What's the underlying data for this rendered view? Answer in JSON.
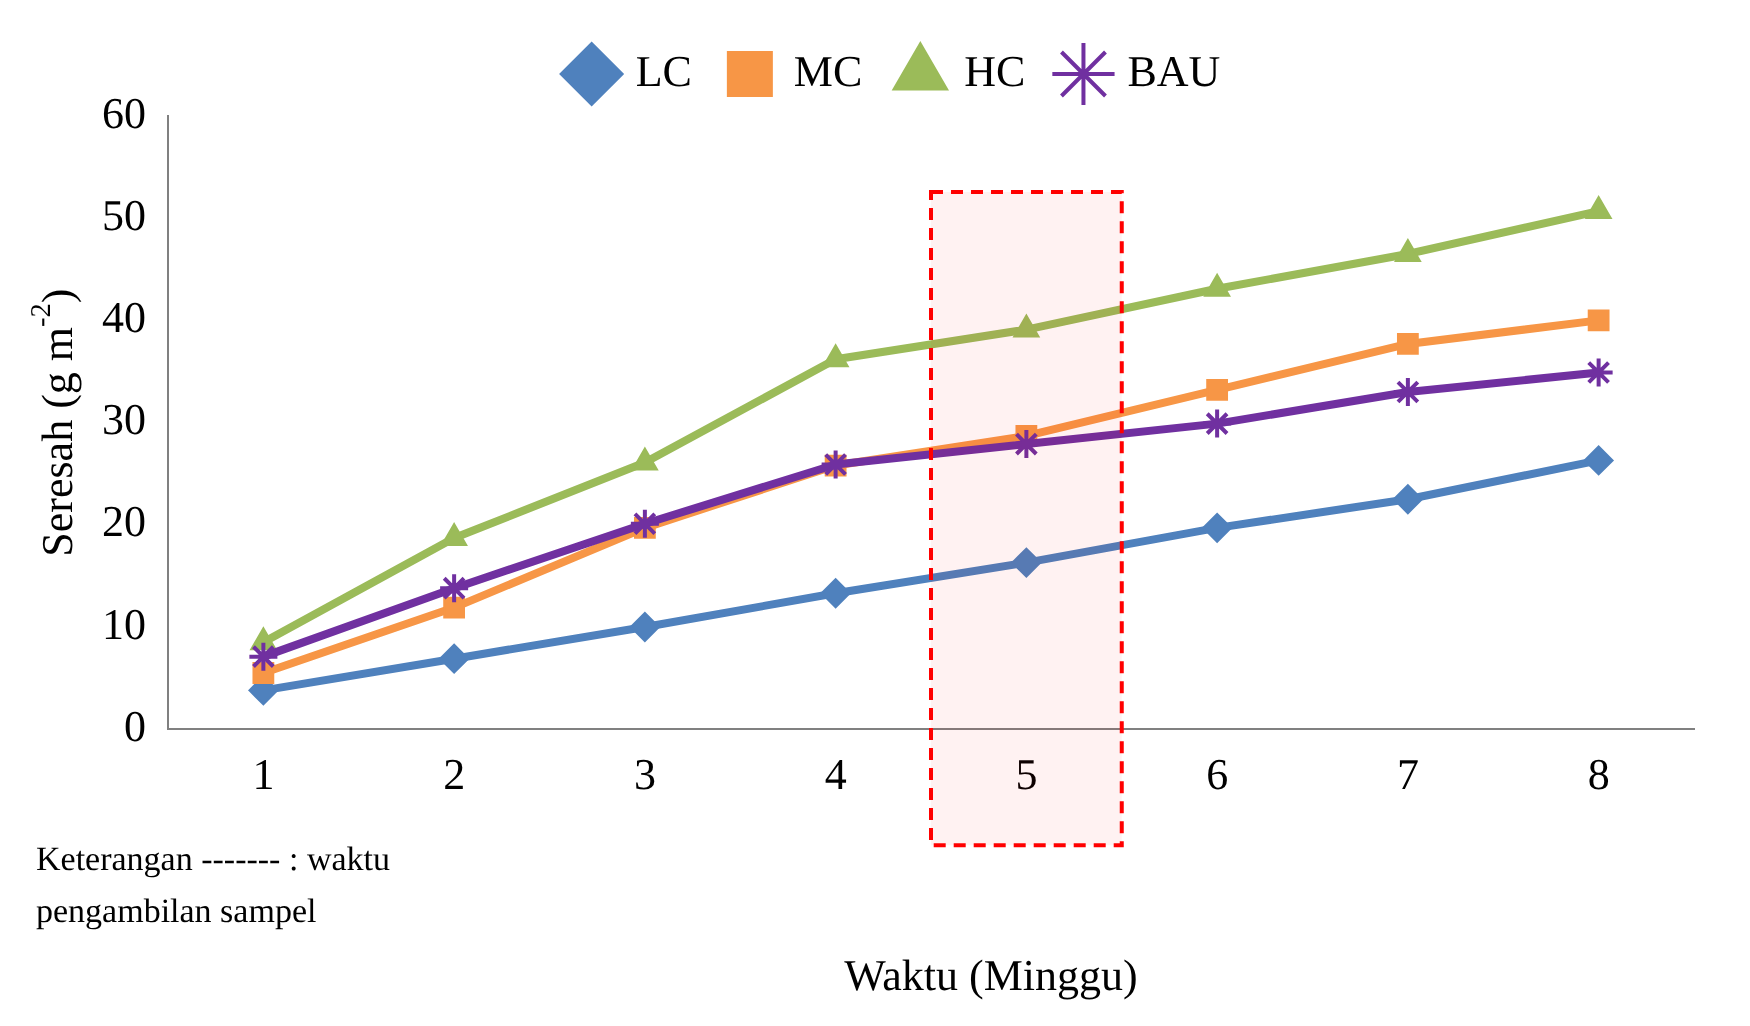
{
  "chart_data": {
    "type": "line",
    "xlabel": "Waktu (Minggu)",
    "ylabel": "Seresah (g m$^{-2}$)",
    "x": [
      1,
      2,
      3,
      4,
      5,
      6,
      7,
      8
    ],
    "xlim": [
      0.5,
      8.5
    ],
    "xticks": [
      1,
      2,
      3,
      4,
      5,
      6,
      7,
      8
    ],
    "ylim": [
      0,
      60
    ],
    "yticks": [
      0,
      10,
      20,
      30,
      40,
      50,
      60
    ],
    "series": [
      {
        "name": "LC",
        "color": "#4f81bd",
        "marker": "diamond",
        "values": [
          3.8,
          6.9,
          10,
          13.3,
          16.3,
          19.7,
          22.5,
          26.3
        ]
      },
      {
        "name": "MC",
        "color": "#f79646",
        "marker": "square",
        "values": [
          5.5,
          11.9,
          19.7,
          25.8,
          28.7,
          33.2,
          37.7,
          40
        ]
      },
      {
        "name": "HC",
        "color": "#9bbb59",
        "marker": "triangle",
        "values": [
          8.5,
          18.7,
          26.1,
          36.2,
          39.1,
          43.1,
          46.5,
          50.7
        ]
      },
      {
        "name": "BAU",
        "color": "#7030a0",
        "marker": "cross",
        "values": [
          7.1,
          13.8,
          20.1,
          25.9,
          27.9,
          29.9,
          33,
          34.9
        ]
      }
    ],
    "bands": [
      {
        "axis": "x",
        "from": 4.5,
        "to": 5.5,
        "color": "#ff0000"
      }
    ],
    "legend": "top",
    "grid": false,
    "annotations": [
      "Keterangan ------- : waktu pengambilan sampel"
    ]
  }
}
